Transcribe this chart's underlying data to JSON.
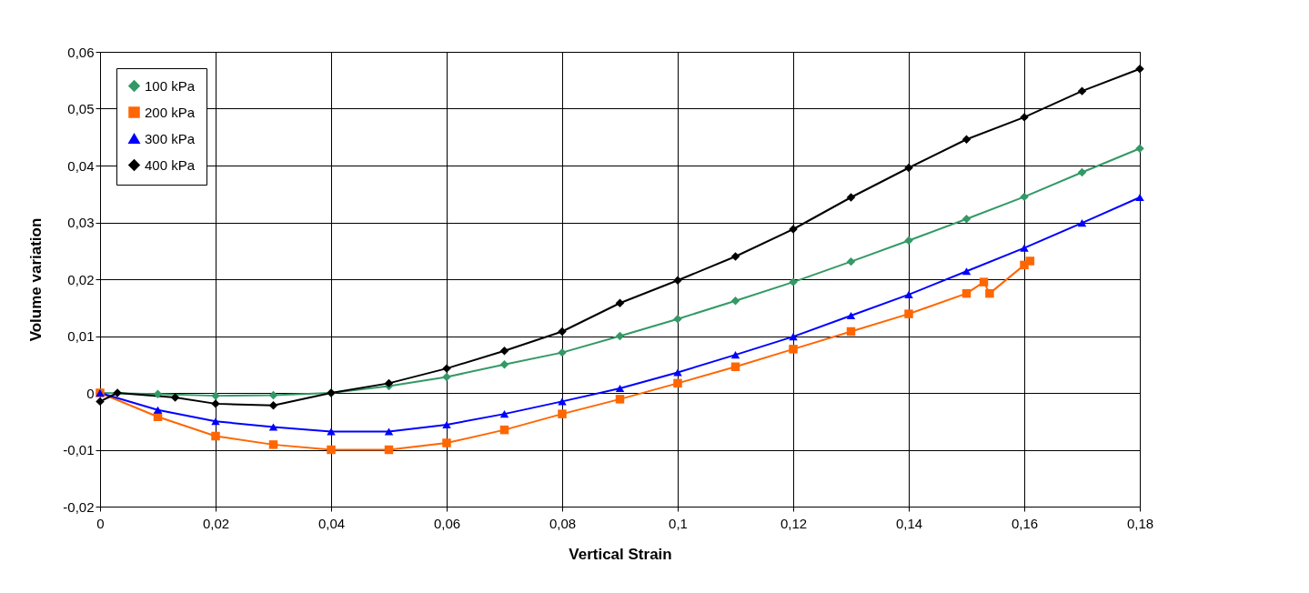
{
  "chart_data": {
    "type": "line",
    "xlabel": "Vertical Strain",
    "ylabel": "Volume variation",
    "xlim": [
      0,
      0.18
    ],
    "ylim": [
      -0.02,
      0.06
    ],
    "xticks": [
      0,
      {
        "value": 0.02,
        "label": "0,02"
      },
      {
        "value": 0.04,
        "label": "0,04"
      },
      {
        "value": 0.06,
        "label": "0,06"
      },
      {
        "value": 0.08,
        "label": "0,08"
      },
      {
        "value": 0.1,
        "label": "0,1"
      },
      {
        "value": 0.12,
        "label": "0,12"
      },
      {
        "value": 0.14,
        "label": "0,14"
      },
      {
        "value": 0.16,
        "label": "0,16"
      },
      {
        "value": 0.18,
        "label": "0,18"
      }
    ],
    "yticks": [
      {
        "value": -0.02,
        "label": "-0,02"
      },
      {
        "value": -0.01,
        "label": "-0,01"
      },
      0,
      {
        "value": 0.01,
        "label": "0,01"
      },
      {
        "value": 0.02,
        "label": "0,02"
      },
      {
        "value": 0.03,
        "label": "0,03"
      },
      {
        "value": 0.04,
        "label": "0,04"
      },
      {
        "value": 0.05,
        "label": "0,05"
      },
      {
        "value": 0.06,
        "label": "0,06"
      }
    ],
    "grid": true,
    "legend": "top left",
    "line_style": "solid",
    "series": [
      {
        "name": "100 kPa",
        "color": "#339966",
        "marker": "diamond",
        "x": [
          0,
          0.01,
          0.02,
          0.03,
          0.04,
          0.05,
          0.06,
          0.07,
          0.08,
          0.09,
          0.1,
          0.11,
          0.12,
          0.13,
          0.14,
          0.15,
          0.16,
          0.17,
          0.18
        ],
        "values": [
          0,
          -0.0002,
          -0.0005,
          -0.0004,
          0,
          0.0012,
          0.0028,
          0.005,
          0.0071,
          0.01,
          0.013,
          0.0162,
          0.0195,
          0.0231,
          0.0268,
          0.0306,
          0.0345,
          0.0388,
          0.043
        ]
      },
      {
        "name": "200 kPa",
        "color": "#ff6600",
        "marker": "square",
        "x": [
          0,
          0.01,
          0.02,
          0.03,
          0.04,
          0.05,
          0.06,
          0.07,
          0.08,
          0.09,
          0.1,
          0.11,
          0.12,
          0.13,
          0.14,
          0.15,
          0.153,
          0.154,
          0.16,
          0.161
        ],
        "values": [
          0,
          -0.0042,
          -0.0076,
          -0.0091,
          -0.01,
          -0.01,
          -0.0088,
          -0.0065,
          -0.0037,
          -0.0011,
          0.0017,
          0.0046,
          0.0077,
          0.0108,
          0.0139,
          0.0175,
          0.0195,
          0.0175,
          0.0225,
          0.0232
        ]
      },
      {
        "name": "300 kPa",
        "color": "#0000ff",
        "marker": "triangle",
        "x": [
          0,
          0.01,
          0.02,
          0.03,
          0.04,
          0.05,
          0.06,
          0.07,
          0.08,
          0.09,
          0.1,
          0.11,
          0.12,
          0.13,
          0.14,
          0.15,
          0.16,
          0.17,
          0.18
        ],
        "values": [
          0,
          -0.003,
          -0.005,
          -0.006,
          -0.0068,
          -0.0068,
          -0.0056,
          -0.0037,
          -0.0015,
          0.0008,
          0.0036,
          0.0067,
          0.0099,
          0.0136,
          0.0173,
          0.0214,
          0.0255,
          0.0299,
          0.0344
        ]
      },
      {
        "name": "400 kPa",
        "color": "#000000",
        "marker": "diamond",
        "x": [
          0,
          0.003,
          0.013,
          0.02,
          0.03,
          0.04,
          0.05,
          0.06,
          0.07,
          0.08,
          0.09,
          0.1,
          0.11,
          0.12,
          0.13,
          0.14,
          0.15,
          0.16,
          0.17,
          0.18
        ],
        "values": [
          -0.0015,
          0,
          -0.0008,
          -0.0019,
          -0.0022,
          0,
          0.0017,
          0.0043,
          0.0074,
          0.0108,
          0.0158,
          0.0198,
          0.024,
          0.0288,
          0.0344,
          0.0396,
          0.0446,
          0.0485,
          0.0531,
          0.057
        ]
      }
    ]
  }
}
